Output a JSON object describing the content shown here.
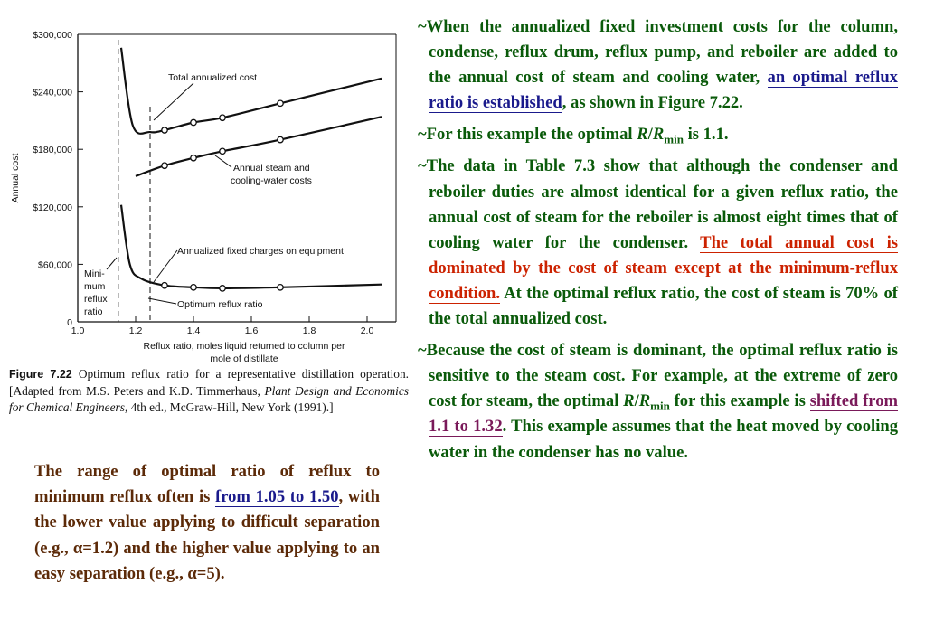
{
  "chart_data": {
    "type": "line",
    "xlabel": "Reflux ratio, moles liquid returned to column per mole of distillate",
    "ylabel": "Annual cost",
    "xlim": [
      1.0,
      2.1
    ],
    "ylim": [
      0,
      300000
    ],
    "x_ticks": [
      "1.0",
      "1.2",
      "1.4",
      "1.6",
      "1.8",
      "2.0"
    ],
    "y_ticks": [
      "0",
      "$60,000",
      "$120,000",
      "$180,000",
      "$240,000",
      "$300,000"
    ],
    "grid": false,
    "series": [
      {
        "name": "Total annualized cost",
        "x": [
          1.15,
          1.19,
          1.25,
          1.3,
          1.4,
          1.5,
          1.7,
          2.05
        ],
        "y": [
          286000,
          205000,
          198000,
          200000,
          208000,
          213000,
          228000,
          254000
        ]
      },
      {
        "name": "Annual steam and cooling-water costs",
        "x": [
          1.2,
          1.3,
          1.4,
          1.5,
          1.7,
          2.05
        ],
        "y": [
          152000,
          163000,
          171000,
          178000,
          190000,
          214000
        ]
      },
      {
        "name": "Annualized fixed charges on equipment",
        "x": [
          1.15,
          1.18,
          1.22,
          1.3,
          1.4,
          1.5,
          1.7,
          2.05
        ],
        "y": [
          122000,
          60000,
          45000,
          38000,
          36000,
          35000,
          36000,
          39000
        ]
      }
    ],
    "annotations": [
      "Minimum reflux ratio",
      "Optimum reflux ratio"
    ],
    "markers": {
      "total": [
        1.3,
        1.4,
        1.5,
        1.7
      ],
      "steam": [
        1.3,
        1.4,
        1.5,
        1.7
      ],
      "fixed": [
        1.3,
        1.4,
        1.5,
        1.7
      ]
    },
    "min_reflux_x": 1.14,
    "optimum_reflux_x": 1.25
  },
  "figure": {
    "labels": {
      "total": "Total annualized cost",
      "steam_1": "Annual steam and",
      "steam_2": "cooling-water costs",
      "fixed": "Annualized fixed charges on equipment",
      "min_1": "Mini-",
      "min_2": "mum",
      "min_3": "reflux",
      "min_4": "ratio",
      "opt": "Optimum reflux ratio",
      "xlabel_1": "Reflux ratio, moles liquid returned to column per",
      "xlabel_2": "mole of distillate",
      "ylabel": "Annual cost"
    },
    "caption": {
      "label": "Figure 7.22",
      "text_1": "Optimum reflux ratio for a representative distillation operation. [Adapted from M.S. Peters and K.D. Timmerhaus,",
      "book": "Plant Design and Economics for Chemical Engineers,",
      "text_2": "4th ed., McGraw-Hill, New York (1991).]"
    }
  },
  "range_paragraph": {
    "part1": "The range of optimal ratio of reflux to minimum reflux often is",
    "highlight": "from 1.05 to 1.50",
    "part2": ", with the lower value applying to difficult separation (e.g., α=1.2) and the higher value applying to an easy separation (e.g., α=5)."
  },
  "bullets": {
    "b1_part1": "~When the annualized fixed investment costs for the column, condense, reflux drum, reflux pump, and reboiler are added to the annual cost of steam and cooling water,",
    "b1_highlight": "an optimal reflux ratio is established",
    "b1_part2": ", as shown in Figure 7.22.",
    "b2_part1": "~For this example the optimal",
    "b2_r": "R",
    "b2_slash": "/",
    "b2_r2": "R",
    "b2_sub": "min",
    "b2_part2": " is 1.1.",
    "b3_part1": "~The data in Table 7.3 show that although the condenser and reboiler duties are almost identical for a given reflux ratio, the annual cost of steam for the reboiler is almost eight times that of cooling water for the condenser.",
    "b3_highlight": "The total annual cost is dominated by the cost of steam except at the minimum-reflux condition.",
    "b3_part2": " At the optimal reflux ratio, the cost of steam is 70% of the total annualized cost.",
    "b4_part1": "~Because the cost of steam is dominant, the optimal reflux ratio is sensitive to the steam cost. For example, at the extreme of zero cost for steam, the optimal",
    "b4_r": "R",
    "b4_slash": "/",
    "b4_r2": "R",
    "b4_sub": "min",
    "b4_part2": " for this example is",
    "b4_highlight": "shifted from 1.1 to 1.32",
    "b4_part3": ". This example assumes that the heat moved by cooling water in the condenser has no value."
  }
}
